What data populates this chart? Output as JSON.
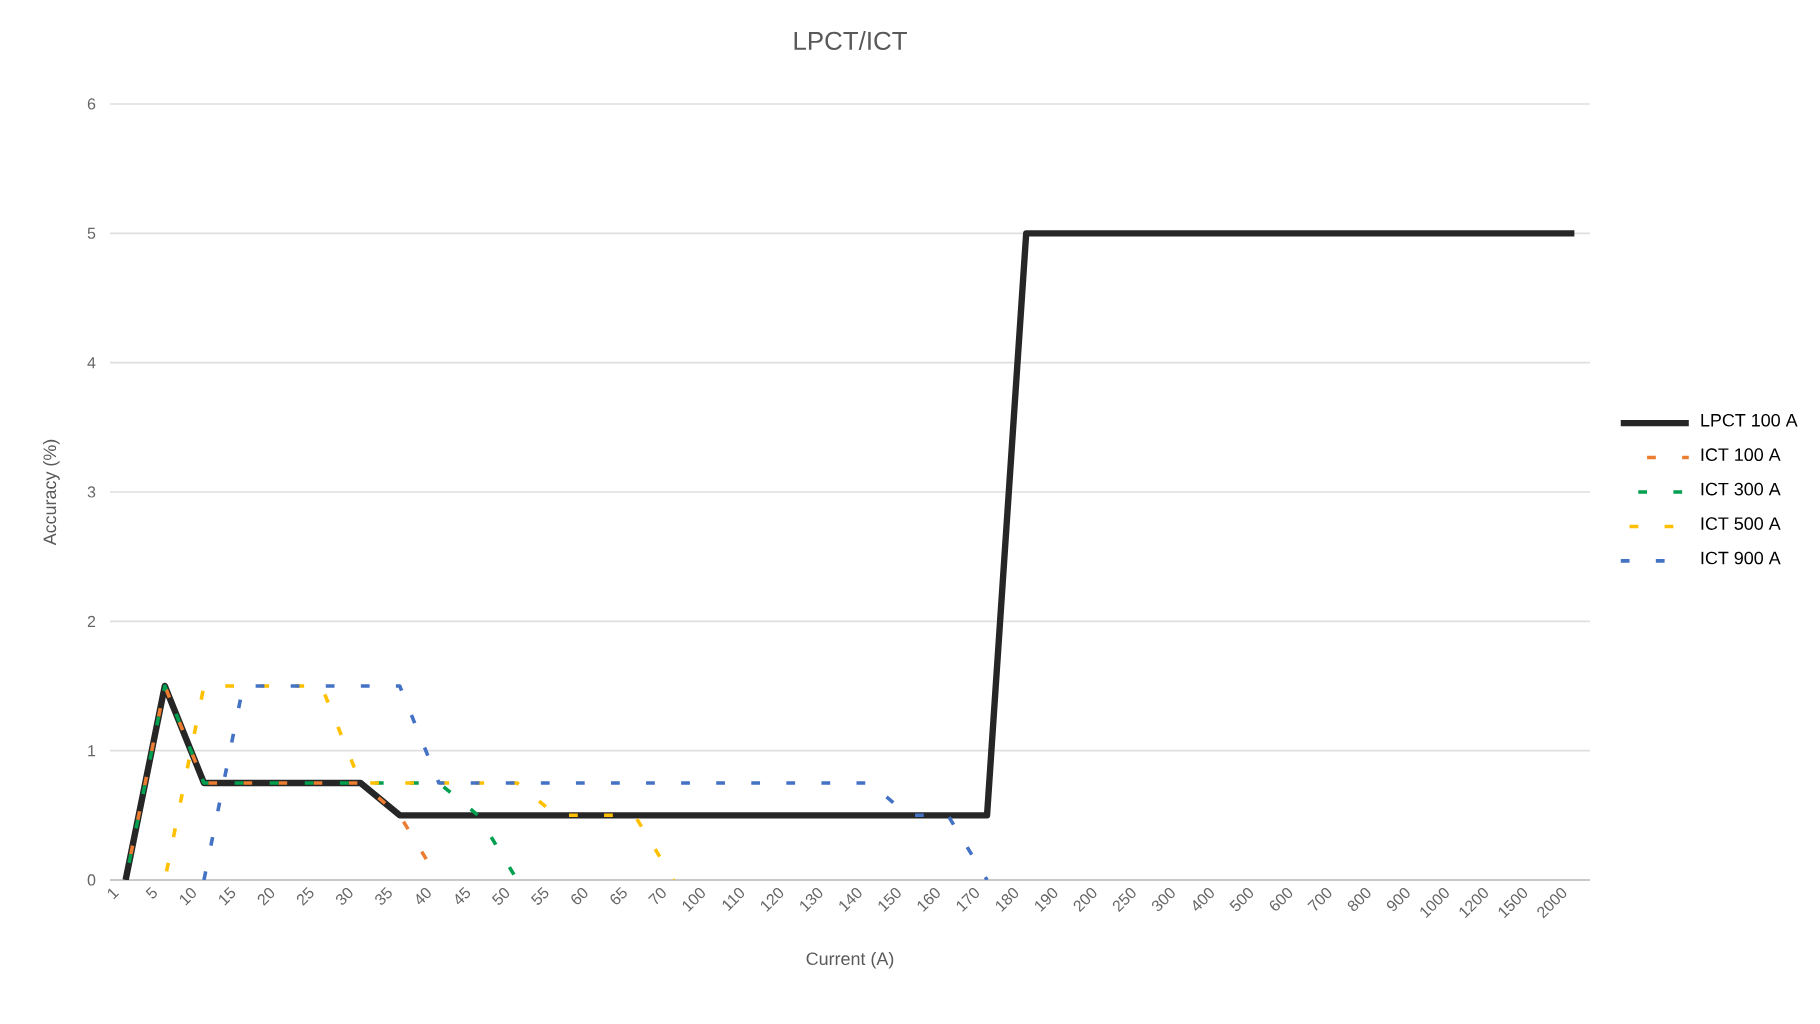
{
  "chart_data": {
    "type": "line",
    "title": "LPCT/ICT",
    "xlabel": "Current (A)",
    "ylabel": "Accuracy (%)",
    "categories": [
      "1",
      "5",
      "10",
      "15",
      "20",
      "25",
      "30",
      "35",
      "40",
      "45",
      "50",
      "55",
      "60",
      "65",
      "70",
      "100",
      "110",
      "120",
      "130",
      "140",
      "150",
      "160",
      "170",
      "180",
      "190",
      "200",
      "250",
      "300",
      "400",
      "500",
      "600",
      "700",
      "800",
      "900",
      "1000",
      "1200",
      "1500",
      "2000"
    ],
    "series": [
      {
        "name": "LPCT 100 A",
        "color": "#262626",
        "line_style": "solid",
        "values": [
          0,
          1.5,
          0.75,
          0.75,
          0.75,
          0.75,
          0.75,
          0.5,
          0.5,
          0.5,
          0.5,
          0.5,
          0.5,
          0.5,
          0.5,
          0.5,
          0.5,
          0.5,
          0.5,
          0.5,
          0.5,
          0.5,
          0.5,
          5,
          5,
          5,
          5,
          5,
          5,
          5,
          5,
          5,
          5,
          5,
          5,
          5,
          5,
          5
        ]
      },
      {
        "name": "ICT 100 A",
        "color": "#ED7D31",
        "line_style": "dashed",
        "values": [
          0,
          1.5,
          0.75,
          0.75,
          0.75,
          0.75,
          0.75,
          0.5,
          0,
          null,
          null,
          null,
          null,
          null,
          null,
          null,
          null,
          null,
          null,
          null,
          null,
          null,
          null,
          null,
          null,
          null,
          null,
          null,
          null,
          null,
          null,
          null,
          null,
          null,
          null,
          null,
          null,
          null
        ]
      },
      {
        "name": "ICT 300 A",
        "color": "#00A050",
        "line_style": "dashed",
        "values": [
          0,
          1.5,
          0.75,
          0.75,
          0.75,
          0.75,
          0.75,
          0.75,
          0.75,
          0.5,
          0,
          null,
          null,
          null,
          null,
          null,
          null,
          null,
          null,
          null,
          null,
          null,
          null,
          null,
          null,
          null,
          null,
          null,
          null,
          null,
          null,
          null,
          null,
          null,
          null,
          null,
          null,
          null
        ]
      },
      {
        "name": "ICT 500 A",
        "color": "#FFC000",
        "line_style": "dashed",
        "values": [
          null,
          0,
          1.5,
          1.5,
          1.5,
          1.5,
          0.75,
          0.75,
          0.75,
          0.75,
          0.75,
          0.5,
          0.5,
          0.5,
          0,
          null,
          null,
          null,
          null,
          null,
          null,
          null,
          null,
          null,
          null,
          null,
          null,
          null,
          null,
          null,
          null,
          null,
          null,
          null,
          null,
          null,
          null,
          null
        ]
      },
      {
        "name": "ICT 900 A",
        "color": "#4472C4",
        "line_style": "dashed",
        "values": [
          null,
          null,
          0,
          1.5,
          1.5,
          1.5,
          1.5,
          1.5,
          0.75,
          0.75,
          0.75,
          0.75,
          0.75,
          0.75,
          0.75,
          0.75,
          0.75,
          0.75,
          0.75,
          0.75,
          0.5,
          0.5,
          0,
          null,
          null,
          null,
          null,
          null,
          null,
          null,
          null,
          null,
          null,
          null,
          null,
          null,
          null,
          null
        ]
      }
    ],
    "ylim": [
      0,
      6
    ],
    "yticks": [
      0,
      1,
      2,
      3,
      4,
      5,
      6
    ],
    "grid": "y",
    "legend": "right",
    "marker": "none"
  }
}
